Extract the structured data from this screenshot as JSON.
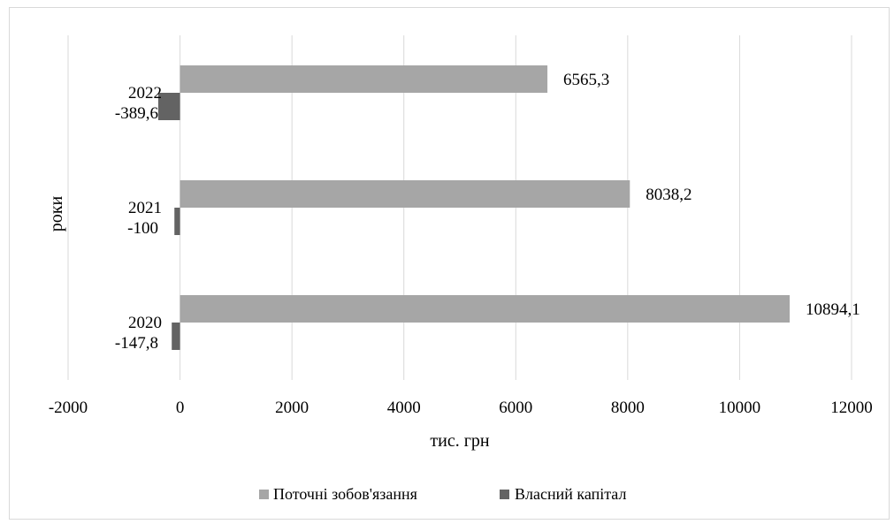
{
  "chart_data": {
    "type": "bar",
    "orientation": "horizontal",
    "categories": [
      "2020",
      "2021",
      "2022"
    ],
    "series": [
      {
        "name": "Поточні зобов'язання",
        "values": [
          10894.1,
          8038.2,
          6565.3
        ],
        "labels": [
          "10894,1",
          "8038,2",
          "6565,3"
        ],
        "color": "#a6a6a6"
      },
      {
        "name": "Власний капітал",
        "values": [
          -147.8,
          -100,
          -389.6
        ],
        "labels": [
          "-147,8",
          "-100",
          "-389,6"
        ],
        "color": "#636363"
      }
    ],
    "xlabel": "тис. грн",
    "ylabel": "роки",
    "xlim": [
      -2000,
      12000
    ],
    "xticks": [
      "-2000",
      "0",
      "2000",
      "4000",
      "6000",
      "8000",
      "10000",
      "12000"
    ],
    "grid": true,
    "legend_position": "bottom"
  }
}
